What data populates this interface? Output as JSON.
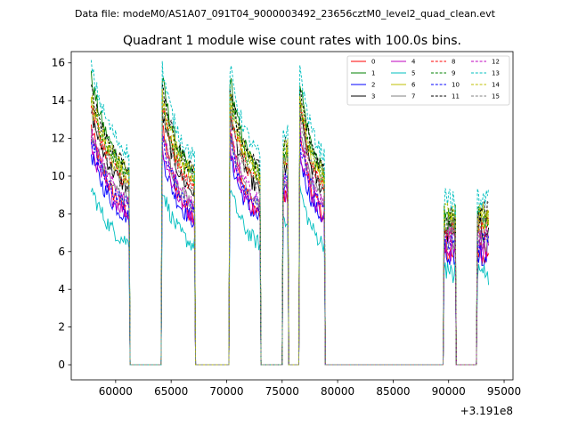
{
  "suptitle": "Data file: modeM0/AS1A07_091T04_9000003492_23656cztM0_level2_quad_clean.evt",
  "chart_data": {
    "type": "line",
    "title": "Quadrant 1 module wise count rates with 100.0s bins.",
    "xlabel": "",
    "ylabel": "",
    "x_offset_label": "+3.191e8",
    "xlim": [
      56000,
      95800
    ],
    "ylim": [
      -0.8,
      16.6
    ],
    "x_ticks": [
      60000,
      65000,
      70000,
      75000,
      80000,
      85000,
      90000,
      95000
    ],
    "x_tick_labels": [
      "60000",
      "65000",
      "70000",
      "75000",
      "80000",
      "85000",
      "90000",
      "95000"
    ],
    "y_ticks": [
      0,
      2,
      4,
      6,
      8,
      10,
      12,
      14,
      16
    ],
    "y_tick_labels": [
      "0",
      "2",
      "4",
      "6",
      "8",
      "10",
      "12",
      "14",
      "16"
    ],
    "segments": [
      {
        "start": 57800,
        "end": 61200,
        "rise": 0.0,
        "decay": 2000
      },
      {
        "start": 64200,
        "end": 67100,
        "rise": 0.0,
        "decay": 1500
      },
      {
        "start": 70300,
        "end": 73000,
        "rise": 0.0,
        "decay": 1500
      },
      {
        "start": 75100,
        "end": 75500,
        "rise": 0.0,
        "decay": 5000
      },
      {
        "start": 76600,
        "end": 78800,
        "rise": 0.0,
        "decay": 1200
      },
      {
        "start": 89600,
        "end": 90600,
        "rise": 0.0,
        "decay": 5000
      },
      {
        "start": 92600,
        "end": 93600,
        "rise": 0.0,
        "decay": 5000
      }
    ],
    "legend_position": "upper right",
    "series": [
      {
        "name": "0",
        "color": "#ff0000",
        "dash": "solid",
        "peak": 12.6,
        "base": 7.0
      },
      {
        "name": "1",
        "color": "#008000",
        "dash": "solid",
        "peak": 15.2,
        "base": 9.2
      },
      {
        "name": "2",
        "color": "#0000ff",
        "dash": "solid",
        "peak": 11.2,
        "base": 7.0
      },
      {
        "name": "3",
        "color": "#000000",
        "dash": "solid",
        "peak": 13.4,
        "base": 8.4
      },
      {
        "name": "4",
        "color": "#bf00bf",
        "dash": "solid",
        "peak": 11.6,
        "base": 7.2
      },
      {
        "name": "5",
        "color": "#00bfbf",
        "dash": "solid",
        "peak": 9.4,
        "base": 5.8
      },
      {
        "name": "6",
        "color": "#bfbf00",
        "dash": "solid",
        "peak": 13.8,
        "base": 9.0
      },
      {
        "name": "7",
        "color": "#808080",
        "dash": "solid",
        "peak": 12.4,
        "base": 7.8
      },
      {
        "name": "8",
        "color": "#ff0000",
        "dash": "dashed",
        "peak": 13.8,
        "base": 8.6
      },
      {
        "name": "9",
        "color": "#008000",
        "dash": "dashed",
        "peak": 14.2,
        "base": 9.2
      },
      {
        "name": "10",
        "color": "#0000ff",
        "dash": "dashed",
        "peak": 12.0,
        "base": 7.6
      },
      {
        "name": "11",
        "color": "#000000",
        "dash": "dashed",
        "peak": 14.6,
        "base": 9.6
      },
      {
        "name": "12",
        "color": "#bf00bf",
        "dash": "dashed",
        "peak": 12.4,
        "base": 7.8
      },
      {
        "name": "13",
        "color": "#00bfbf",
        "dash": "dashed",
        "peak": 15.8,
        "base": 10.2
      },
      {
        "name": "14",
        "color": "#bfbf00",
        "dash": "dashed",
        "peak": 14.2,
        "base": 9.4
      },
      {
        "name": "15",
        "color": "#808080",
        "dash": "dashed",
        "peak": 13.4,
        "base": 8.6
      }
    ]
  }
}
